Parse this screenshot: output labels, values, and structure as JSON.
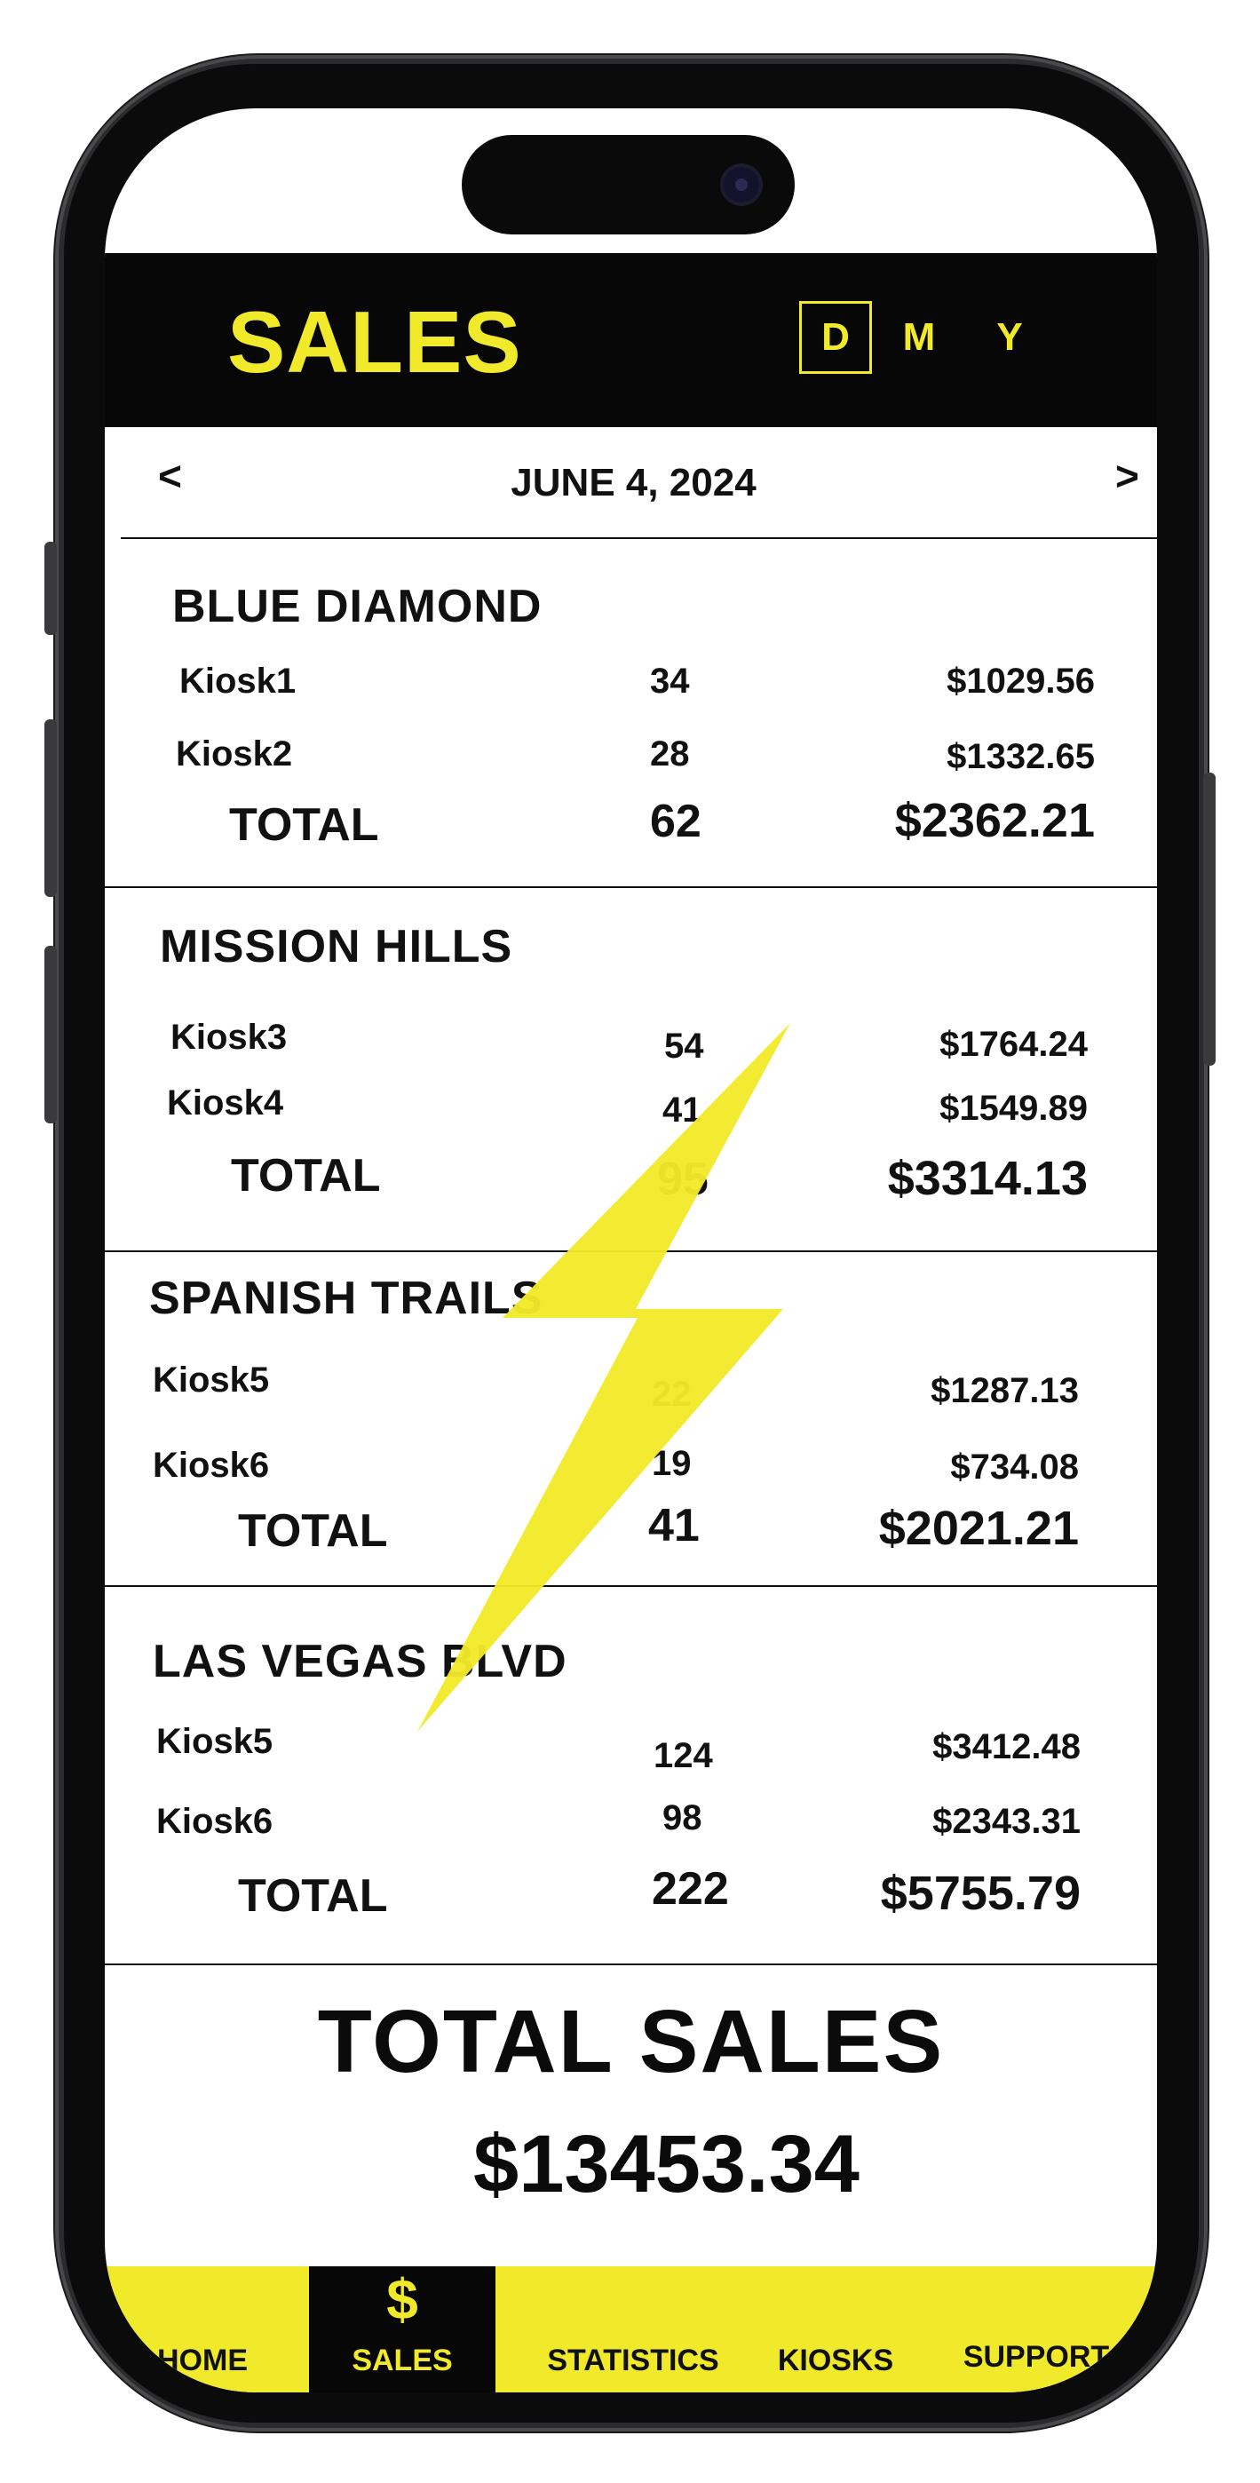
{
  "header": {
    "title": "SALES",
    "periods": [
      "D",
      "M",
      "Y"
    ],
    "active_period": "D"
  },
  "date_nav": {
    "prev": "<",
    "date": "JUNE 4, 2024",
    "next": ">"
  },
  "locations": [
    {
      "name": "BLUE DIAMOND",
      "kiosks": [
        {
          "label": "Kiosk1",
          "qty": "34",
          "amount": "$1029.56"
        },
        {
          "label": "Kiosk2",
          "qty": "28",
          "amount": "$1332.65"
        }
      ],
      "total": {
        "label": "TOTAL",
        "qty": "62",
        "amount": "$2362.21"
      }
    },
    {
      "name": "MISSION HILLS",
      "kiosks": [
        {
          "label": "Kiosk3",
          "qty": "54",
          "amount": "$1764.24"
        },
        {
          "label": "Kiosk4",
          "qty": "41",
          "amount": "$1549.89"
        }
      ],
      "total": {
        "label": "TOTAL",
        "qty": "95",
        "amount": "$3314.13"
      }
    },
    {
      "name": "SPANISH TRAILS",
      "kiosks": [
        {
          "label": "Kiosk5",
          "qty": "22",
          "amount": "$1287.13"
        },
        {
          "label": "Kiosk6",
          "qty": "19",
          "amount": "$734.08"
        }
      ],
      "total": {
        "label": "TOTAL",
        "qty": "41",
        "amount": "$2021.21"
      }
    },
    {
      "name": "LAS VEGAS BLVD",
      "kiosks": [
        {
          "label": "Kiosk5",
          "qty": "124",
          "amount": "$3412.48"
        },
        {
          "label": "Kiosk6",
          "qty": "98",
          "amount": "$2343.31"
        }
      ],
      "total": {
        "label": "TOTAL",
        "qty": "222",
        "amount": "$5755.79"
      }
    }
  ],
  "grand_total": {
    "label": "TOTAL SALES",
    "value": "$13453.34"
  },
  "nav": {
    "items": [
      {
        "label": "HOME"
      },
      {
        "label": "SALES",
        "icon": "$"
      },
      {
        "label": "STATISTICS"
      },
      {
        "label": "KIOSKS"
      },
      {
        "label": "SUPPORT"
      }
    ],
    "active": "SALES"
  },
  "colors": {
    "accent": "#f1ea2a",
    "dark": "#070707"
  }
}
